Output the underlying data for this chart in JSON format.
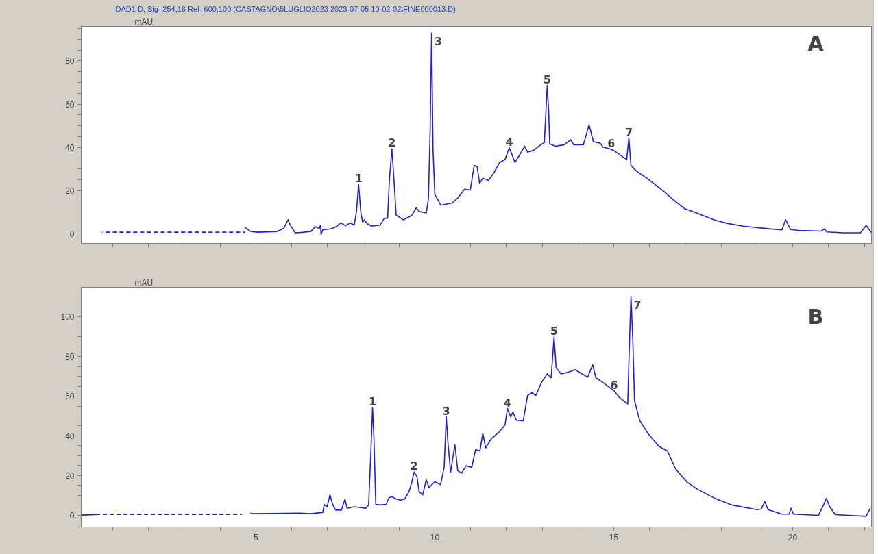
{
  "chart_data": [
    {
      "type": "line",
      "title": "DAD1 D, Sig=254,16 Ref=600,100 (CASTAGNO\\5LUGLIO2023 2023-07-05 10-02-02\\FINE000013.D)",
      "ylabel": "mAU",
      "xlim": [
        0.12,
        22.2
      ],
      "ylim": [
        -4.5,
        96
      ],
      "tick_labels": "y",
      "grid": false,
      "xticks": [
        {
          "value": 1,
          "label": null
        },
        {
          "value": 2,
          "label": null
        },
        {
          "value": 3,
          "label": null
        },
        {
          "value": 4,
          "label": null
        },
        5,
        {
          "value": 6,
          "label": null
        },
        {
          "value": 7,
          "label": null
        },
        {
          "value": 8,
          "label": null
        },
        {
          "value": 9,
          "label": null
        },
        10,
        {
          "value": 11,
          "label": null
        },
        {
          "value": 12,
          "label": null
        },
        {
          "value": 13,
          "label": null
        },
        {
          "value": 14,
          "label": null
        },
        15,
        {
          "value": 16,
          "label": null
        },
        {
          "value": 17,
          "label": null
        },
        {
          "value": 18,
          "label": null
        },
        {
          "value": 19,
          "label": null
        },
        20,
        {
          "value": 21,
          "label": null
        },
        {
          "value": 22,
          "label": null
        }
      ],
      "yticks": [
        0,
        {
          "value": 5,
          "label": null
        },
        {
          "value": 10,
          "label": null
        },
        {
          "value": 15,
          "label": null
        },
        20,
        {
          "value": 25,
          "label": null
        },
        {
          "value": 30,
          "label": null
        },
        {
          "value": 35,
          "label": null
        },
        40,
        {
          "value": 45,
          "label": null
        },
        {
          "value": 50,
          "label": null
        },
        {
          "value": 55,
          "label": null
        },
        60,
        {
          "value": 65,
          "label": null
        },
        {
          "value": 70,
          "label": null
        },
        {
          "value": 75,
          "label": null
        },
        80,
        {
          "value": 85,
          "label": null
        },
        {
          "value": 90,
          "label": null
        },
        {
          "value": 95,
          "label": null
        }
      ],
      "series": [
        {
          "color": "#1f1fd6",
          "line_style": "dashed",
          "x": [
            0.71,
            4.69
          ],
          "values": [
            0.7,
            0.7
          ]
        },
        {
          "color": "#1f1fd6",
          "line_style": "solid",
          "x": [
            4.69,
            4.85,
            5.05,
            5.58,
            5.78,
            5.9,
            5.96,
            6.1,
            6.3,
            6.54,
            6.66,
            6.77,
            6.81,
            6.82,
            6.87,
            7.11,
            7.27,
            7.37,
            7.51,
            7.63,
            7.75,
            7.81,
            7.87,
            7.93,
            7.98,
            8.03,
            8.11,
            8.23,
            8.47,
            8.59,
            8.68,
            8.73,
            8.8,
            8.86,
            8.92,
            9.0,
            9.12,
            9.36,
            9.48,
            9.56,
            9.76,
            9.82,
            9.87,
            9.91,
            9.95,
            10.0,
            10.08,
            10.16,
            10.48,
            10.64,
            10.83,
            10.99,
            11.1,
            11.18,
            11.25,
            11.34,
            11.5,
            11.65,
            11.81,
            11.96,
            12.08,
            12.24,
            12.39,
            12.51,
            12.59,
            12.75,
            12.9,
            13.06,
            13.14,
            13.18,
            13.21,
            13.37,
            13.61,
            13.8,
            13.88,
            14.15,
            14.31,
            14.43,
            14.62,
            14.7,
            14.93,
            15.01,
            15.36,
            15.42,
            15.48,
            15.64,
            15.95,
            16.42,
            16.65,
            16.97,
            17.36,
            17.83,
            18.14,
            18.61,
            19.39,
            19.7,
            19.8,
            19.94,
            20.17,
            20.8,
            20.88,
            20.95,
            21.42,
            21.89,
            22.05,
            22.2
          ],
          "values": [
            3.0,
            1.1,
            0.7,
            1.0,
            2.5,
            6.5,
            4.0,
            0.4,
            0.6,
            1.1,
            3.3,
            2.5,
            4.0,
            -0.3,
            1.8,
            2.3,
            3.5,
            5.1,
            3.7,
            5.0,
            4.0,
            10.3,
            22.8,
            10.3,
            5.4,
            6.4,
            4.7,
            3.5,
            4.0,
            7.2,
            7.2,
            24.5,
            39.3,
            24.5,
            8.6,
            7.8,
            6.4,
            8.6,
            12.0,
            10.3,
            9.6,
            16.0,
            48.5,
            93.0,
            38.6,
            18.1,
            16.0,
            13.2,
            14.2,
            16.5,
            20.6,
            20.2,
            31.6,
            31.2,
            23.4,
            25.7,
            24.7,
            28.2,
            33.0,
            34.3,
            39.8,
            33.0,
            37.1,
            40.5,
            37.8,
            38.5,
            40.5,
            42.2,
            68.6,
            57.0,
            41.6,
            40.5,
            41.2,
            43.5,
            41.2,
            41.2,
            50.4,
            42.6,
            41.9,
            40.1,
            39.1,
            38.4,
            34.3,
            44.3,
            31.6,
            28.9,
            25.4,
            19.3,
            15.9,
            11.7,
            9.3,
            6.3,
            4.9,
            3.5,
            2.2,
            1.8,
            6.5,
            1.9,
            1.5,
            1.2,
            2.2,
            0.8,
            0.4,
            0.4,
            3.8,
            0.5
          ]
        }
      ],
      "annotations": [
        "A",
        {
          "text": "1",
          "x": 7.87,
          "y": 22.8
        },
        {
          "text": "2",
          "x": 8.8,
          "y": 39.3
        },
        {
          "text": "3",
          "x": 9.91,
          "y": 93.0
        },
        {
          "text": "4",
          "x": 12.08,
          "y": 39.8
        },
        {
          "text": "5",
          "x": 13.14,
          "y": 68.6
        },
        {
          "text": "6",
          "x": 14.93,
          "y": 39.1
        },
        {
          "text": "7",
          "x": 15.42,
          "y": 44.3
        }
      ]
    },
    {
      "type": "line",
      "ylabel": "mAU",
      "xlim": [
        0.12,
        22.2
      ],
      "ylim": [
        -6,
        115
      ],
      "grid": false,
      "xticks": [
        {
          "value": 1,
          "label": null
        },
        {
          "value": 2,
          "label": null
        },
        {
          "value": 3,
          "label": null
        },
        {
          "value": 4,
          "label": null
        },
        5,
        {
          "value": 6,
          "label": null
        },
        {
          "value": 7,
          "label": null
        },
        {
          "value": 8,
          "label": null
        },
        {
          "value": 9,
          "label": null
        },
        10,
        {
          "value": 11,
          "label": null
        },
        {
          "value": 12,
          "label": null
        },
        {
          "value": 13,
          "label": null
        },
        {
          "value": 14,
          "label": null
        },
        15,
        {
          "value": 16,
          "label": null
        },
        {
          "value": 17,
          "label": null
        },
        {
          "value": 18,
          "label": null
        },
        {
          "value": 19,
          "label": null
        },
        20,
        {
          "value": 21,
          "label": null
        },
        {
          "value": 22,
          "label": null
        }
      ],
      "yticks": [
        {
          "value": -5,
          "label": null
        },
        0,
        {
          "value": 5,
          "label": null
        },
        {
          "value": 10,
          "label": null
        },
        {
          "value": 15,
          "label": null
        },
        20,
        {
          "value": 25,
          "label": null
        },
        {
          "value": 30,
          "label": null
        },
        {
          "value": 35,
          "label": null
        },
        40,
        {
          "value": 45,
          "label": null
        },
        {
          "value": 50,
          "label": null
        },
        {
          "value": 55,
          "label": null
        },
        60,
        {
          "value": 65,
          "label": null
        },
        {
          "value": 70,
          "label": null
        },
        {
          "value": 75,
          "label": null
        },
        80,
        {
          "value": 85,
          "label": null
        },
        {
          "value": 90,
          "label": null
        },
        {
          "value": 95,
          "label": null
        },
        100,
        {
          "value": 105,
          "label": null
        },
        {
          "value": 110,
          "label": null
        }
      ],
      "series": [
        {
          "color": "#1f1fd6",
          "line_style": "dashed",
          "x": [
            0.63,
            4.61
          ],
          "values": [
            0.3,
            0.3
          ]
        },
        {
          "color": "#1f1fd6",
          "line_style": "solid",
          "x": [
            0.12,
            0.63,
            2.7,
            4.85,
            4.93,
            6.22,
            6.54,
            6.87,
            6.91,
            6.99,
            7.07,
            7.15,
            7.23,
            7.39,
            7.49,
            7.55,
            7.75,
            8.07,
            8.15,
            8.21,
            8.26,
            8.3,
            8.35,
            8.48,
            8.64,
            8.72,
            8.8,
            8.92,
            9.04,
            9.16,
            9.28,
            9.36,
            9.42,
            9.5,
            9.56,
            9.66,
            9.76,
            9.84,
            10.0,
            10.16,
            10.26,
            10.32,
            10.36,
            10.44,
            10.56,
            10.64,
            10.75,
            10.87,
            11.03,
            11.14,
            11.26,
            11.34,
            11.42,
            11.57,
            11.81,
            11.96,
            12.03,
            12.12,
            12.18,
            12.28,
            12.47,
            12.59,
            12.71,
            12.82,
            12.98,
            13.14,
            13.25,
            13.33,
            13.39,
            13.53,
            13.76,
            13.92,
            14.07,
            14.27,
            14.41,
            14.5,
            14.7,
            15.01,
            15.17,
            15.39,
            15.43,
            15.48,
            15.53,
            15.58,
            15.72,
            15.95,
            16.26,
            16.5,
            16.73,
            17.05,
            17.36,
            17.83,
            18.3,
            19.0,
            19.12,
            19.22,
            19.31,
            19.7,
            19.9,
            19.95,
            20.02,
            20.72,
            20.84,
            20.94,
            21.03,
            21.19,
            22.05,
            22.17
          ],
          "values": [
            0,
            0.3,
            null,
            1.0,
            0.7,
            1.0,
            0.7,
            1.4,
            5.4,
            4.2,
            10.2,
            5.1,
            2.5,
            2.5,
            8.1,
            3.4,
            4.2,
            3.4,
            5.1,
            30.5,
            54.2,
            38.1,
            5.4,
            5.1,
            5.4,
            8.8,
            9.3,
            8.1,
            7.6,
            8.1,
            11.9,
            16.9,
            21.7,
            19.5,
            11.9,
            10.2,
            17.8,
            13.9,
            16.9,
            15.3,
            24.1,
            49.6,
            38.0,
            21.6,
            35.6,
            22.4,
            21.2,
            24.9,
            24.1,
            33.1,
            32.3,
            41.3,
            33.9,
            38.4,
            42.2,
            45.5,
            53.7,
            49.6,
            52.0,
            47.9,
            47.6,
            60.3,
            61.9,
            60.3,
            66.9,
            71.3,
            69.3,
            89.9,
            74.3,
            71.3,
            72.3,
            73.4,
            71.8,
            69.6,
            75.9,
            69.3,
            66.9,
            62.7,
            59.1,
            56.1,
            82.5,
            110.5,
            89.1,
            57.8,
            47.9,
            41.3,
            34.7,
            32.3,
            23.2,
            16.6,
            12.8,
            8.4,
            5.1,
            2.7,
            3.1,
            6.8,
            2.7,
            0.5,
            0.5,
            3.5,
            0.5,
            -0.1,
            4.3,
            8.4,
            4.3,
            0.2,
            -0.6,
            3.5
          ]
        }
      ],
      "annotations": [
        "B",
        {
          "text": "1",
          "x": 8.26,
          "y": 54.2
        },
        {
          "text": "2",
          "x": 9.42,
          "y": 21.7
        },
        {
          "text": "3",
          "x": 10.32,
          "y": 49.6
        },
        {
          "text": "4",
          "x": 12.03,
          "y": 53.7
        },
        {
          "text": "5",
          "x": 13.33,
          "y": 89.9
        },
        {
          "text": "6",
          "x": 15.01,
          "y": 62.7
        },
        {
          "text": "7",
          "x": 15.48,
          "y": 110.5
        }
      ]
    }
  ]
}
